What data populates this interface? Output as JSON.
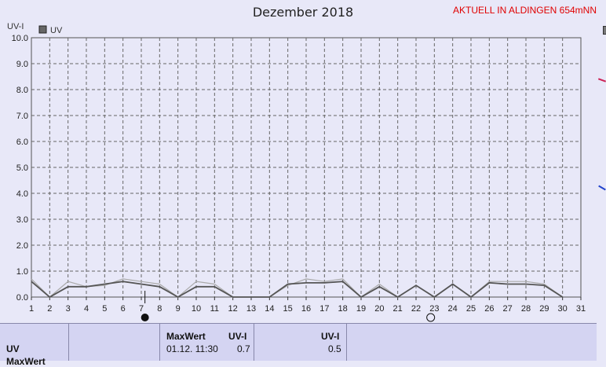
{
  "chart_data": {
    "type": "line",
    "title": "Dezember 2018",
    "ylabel": "UV-I",
    "legend": "UV",
    "ylim": [
      0,
      10
    ],
    "yticks": [
      "0.0",
      "1.0",
      "2.0",
      "3.0",
      "4.0",
      "5.0",
      "6.0",
      "7.0",
      "8.0",
      "9.0",
      "10.0"
    ],
    "x": [
      1,
      2,
      3,
      4,
      5,
      6,
      7,
      8,
      9,
      10,
      11,
      12,
      13,
      14,
      15,
      16,
      17,
      18,
      19,
      20,
      21,
      22,
      23,
      24,
      25,
      26,
      27,
      28,
      29,
      30,
      31
    ],
    "series": [
      {
        "name": "UV",
        "values": [
          0.6,
          0,
          0.4,
          0.4,
          0.5,
          0.6,
          0.5,
          0.4,
          0,
          0.4,
          0.4,
          0,
          0,
          0,
          0.5,
          0.55,
          0.55,
          0.6,
          0,
          0.4,
          0,
          0.45,
          0,
          0.5,
          0,
          0.55,
          0.5,
          0.5,
          0.45,
          0,
          null
        ],
        "color": "#555555"
      },
      {
        "values": [
          0.7,
          0,
          0.6,
          0.4,
          0.45,
          0.7,
          0.6,
          0.5,
          0,
          0.6,
          0.5,
          0,
          0,
          0,
          0.45,
          0.7,
          0.6,
          0.7,
          0,
          0.5,
          0,
          0.45,
          0,
          0.5,
          0,
          0.6,
          0.6,
          0.6,
          0.5,
          0,
          null
        ],
        "color": "#aaaaaa"
      }
    ],
    "moon_full_day": 22.8,
    "moon_new_day": 7.2,
    "grid": true
  },
  "header": {
    "note": "AKTUELL IN ALDINGEN 654mNN"
  },
  "panel": {
    "row_label": "UV",
    "row_label_2": "MaxWert",
    "max_title": "MaxWert",
    "max_unit": "UV-I",
    "max_datetime": "01.12.  11:30",
    "max_value": "0.7",
    "avg_unit": "UV-I",
    "avg_value": "0.5"
  },
  "colors": {
    "line_dark": "#555555",
    "line_light": "#aaaaaa",
    "grid": "#666666",
    "note": "#e00000"
  }
}
